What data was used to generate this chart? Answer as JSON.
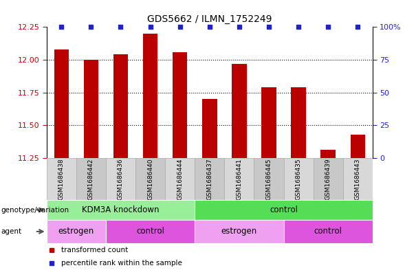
{
  "title": "GDS5662 / ILMN_1752249",
  "samples": [
    "GSM1686438",
    "GSM1686442",
    "GSM1686436",
    "GSM1686440",
    "GSM1686444",
    "GSM1686437",
    "GSM1686441",
    "GSM1686445",
    "GSM1686435",
    "GSM1686439",
    "GSM1686443"
  ],
  "transformed_counts": [
    12.08,
    12.0,
    12.04,
    12.2,
    12.06,
    11.7,
    11.97,
    11.79,
    11.79,
    11.31,
    11.43
  ],
  "percentile_ranks": [
    100,
    100,
    100,
    100,
    100,
    100,
    100,
    100,
    100,
    100,
    100
  ],
  "ylim_left": [
    11.25,
    12.25
  ],
  "yticks_left": [
    11.25,
    11.5,
    11.75,
    12.0,
    12.25
  ],
  "grid_lines": [
    11.5,
    11.75,
    12.0
  ],
  "ylim_right": [
    0,
    100
  ],
  "yticks_right": [
    0,
    25,
    50,
    75,
    100
  ],
  "bar_color": "#bb0000",
  "dot_color": "#2222cc",
  "bar_width": 0.5,
  "genotype_groups": [
    {
      "label": "KDM3A knockdown",
      "start": 0,
      "end": 5,
      "color": "#99ee99"
    },
    {
      "label": "control",
      "start": 5,
      "end": 11,
      "color": "#55dd55"
    }
  ],
  "agent_groups": [
    {
      "label": "estrogen",
      "start": 0,
      "end": 2,
      "color": "#f0a0f0"
    },
    {
      "label": "control",
      "start": 2,
      "end": 5,
      "color": "#dd55dd"
    },
    {
      "label": "estrogen",
      "start": 5,
      "end": 8,
      "color": "#f0a0f0"
    },
    {
      "label": "control",
      "start": 8,
      "end": 11,
      "color": "#dd55dd"
    }
  ],
  "legend_items": [
    {
      "label": "transformed count",
      "color": "#bb0000"
    },
    {
      "label": "percentile rank within the sample",
      "color": "#2222cc"
    }
  ]
}
